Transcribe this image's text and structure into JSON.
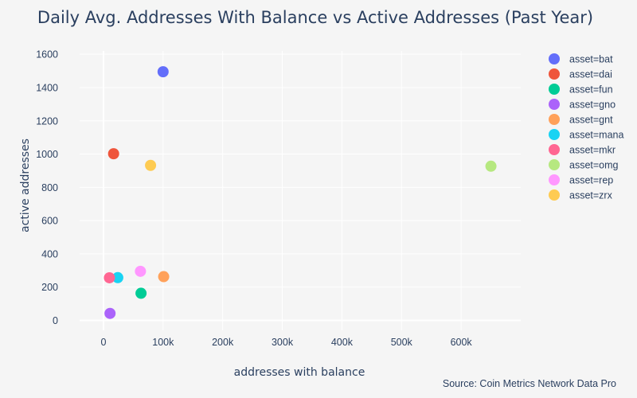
{
  "chart_data": {
    "type": "scatter",
    "title": "Daily Avg. Addresses With Balance vs Active Addresses (Past Year)",
    "xlabel": "addresses with balance",
    "ylabel": "active addresses",
    "source": "Source: Coin Metrics Network Data Pro",
    "xlim": [
      -40000,
      700000
    ],
    "ylim": [
      -60,
      1620
    ],
    "x_ticks": [
      0,
      100000,
      200000,
      300000,
      400000,
      500000,
      600000
    ],
    "x_tick_labels": [
      "0",
      "100k",
      "200k",
      "300k",
      "400k",
      "500k",
      "600k"
    ],
    "y_ticks": [
      0,
      200,
      400,
      600,
      800,
      1000,
      1200,
      1400,
      1600
    ],
    "y_tick_labels": [
      "0",
      "200",
      "400",
      "600",
      "800",
      "1000",
      "1200",
      "1400",
      "1600"
    ],
    "grid": true,
    "legend_position": "right",
    "series": [
      {
        "name": "asset=bat",
        "color": "#636efa",
        "x": [
          100000
        ],
        "y": [
          1495
        ]
      },
      {
        "name": "asset=dai",
        "color": "#ef553b",
        "x": [
          17000
        ],
        "y": [
          1002
        ]
      },
      {
        "name": "asset=fun",
        "color": "#00cc96",
        "x": [
          63000
        ],
        "y": [
          163
        ]
      },
      {
        "name": "asset=gno",
        "color": "#ab63fa",
        "x": [
          11000
        ],
        "y": [
          42
        ]
      },
      {
        "name": "asset=gnt",
        "color": "#ffa15a",
        "x": [
          101000
        ],
        "y": [
          263
        ]
      },
      {
        "name": "asset=mana",
        "color": "#19d3f3",
        "x": [
          24000
        ],
        "y": [
          257
        ]
      },
      {
        "name": "asset=mkr",
        "color": "#ff6692",
        "x": [
          10000
        ],
        "y": [
          256
        ]
      },
      {
        "name": "asset=omg",
        "color": "#b6e880",
        "x": [
          650000
        ],
        "y": [
          927
        ]
      },
      {
        "name": "asset=rep",
        "color": "#ff97ff",
        "x": [
          62000
        ],
        "y": [
          295
        ]
      },
      {
        "name": "asset=zrx",
        "color": "#fecb52",
        "x": [
          79000
        ],
        "y": [
          932
        ]
      }
    ]
  }
}
